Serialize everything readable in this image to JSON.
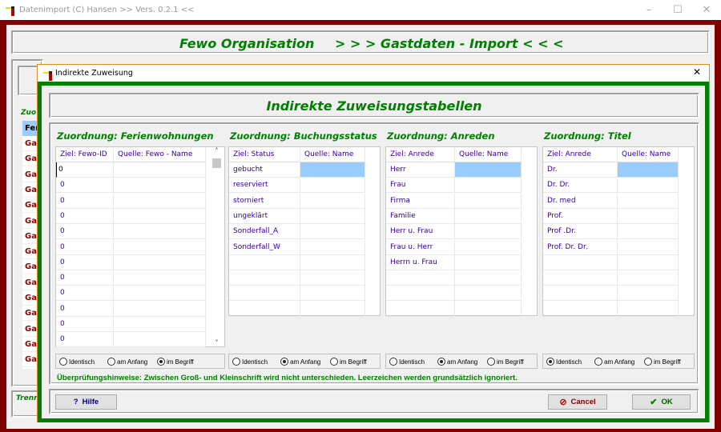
{
  "app": {
    "title": "Datenimport (C) Hansen  >> Vers. 0.2.1 <<",
    "header_left": "Fewo Organisation",
    "header_right": "> > > Gastdaten - Import < < <",
    "bg_group_label": "Zuo",
    "bg_list_header": "Fer",
    "bg_list_item": "Ga",
    "bg_bottom_label": "Trenn"
  },
  "dialog": {
    "title": "Indirekte Zuweisung",
    "heading": "Indirekte Zuweisungstabellen",
    "groups": [
      {
        "title": "Zuordnung: Ferienwohnungen",
        "headers": [
          "Ziel: Fewo-ID",
          "Quelle: Fewo - Name"
        ],
        "rows": [
          "0",
          "0",
          "0",
          "0",
          "0",
          "0",
          "0",
          "0",
          "0",
          "0",
          "0",
          "0"
        ],
        "radio_selected": 2
      },
      {
        "title": "Zuordnung: Buchungsstatus",
        "headers": [
          "Ziel: Status",
          "Quelle: Name"
        ],
        "rows": [
          "gebucht",
          "reserviert",
          "storniert",
          "ungeklärt",
          "Sonderfall_A",
          "Sonderfall_W",
          "",
          "",
          "",
          ""
        ],
        "radio_selected": 1
      },
      {
        "title": "Zuordnung: Anreden",
        "headers": [
          "Ziel: Anrede",
          "Quelle: Name"
        ],
        "rows": [
          "Herr",
          "Frau",
          "Firma",
          "Familie",
          "Herr u. Frau",
          "Frau u. Herr",
          "Herrn u. Frau",
          "",
          "",
          ""
        ],
        "radio_selected": 1
      },
      {
        "title": "Zuordnung: Titel",
        "headers": [
          "Ziel: Anrede",
          "Quelle: Name"
        ],
        "rows": [
          "Dr.",
          "Dr. Dr.",
          "Dr. med",
          "Prof.",
          "Prof .Dr.",
          "Prof. Dr. Dr.",
          "",
          "",
          "",
          ""
        ],
        "radio_selected": 0
      }
    ],
    "radio_options": [
      "Identisch",
      "am Anfang",
      "im Begriff"
    ],
    "hint": "Überprüfungshinweise:   Zwischen Groß- und Kleinschrift wird nicht unterschieden. Leerzeichen werden grundsätzlich ignoriert.",
    "buttons": {
      "help": "Hilfe",
      "cancel": "Cancel",
      "ok": "OK"
    },
    "colors": {
      "accent": "#008000",
      "frame": "#800000",
      "selection": "#99ccff"
    }
  }
}
